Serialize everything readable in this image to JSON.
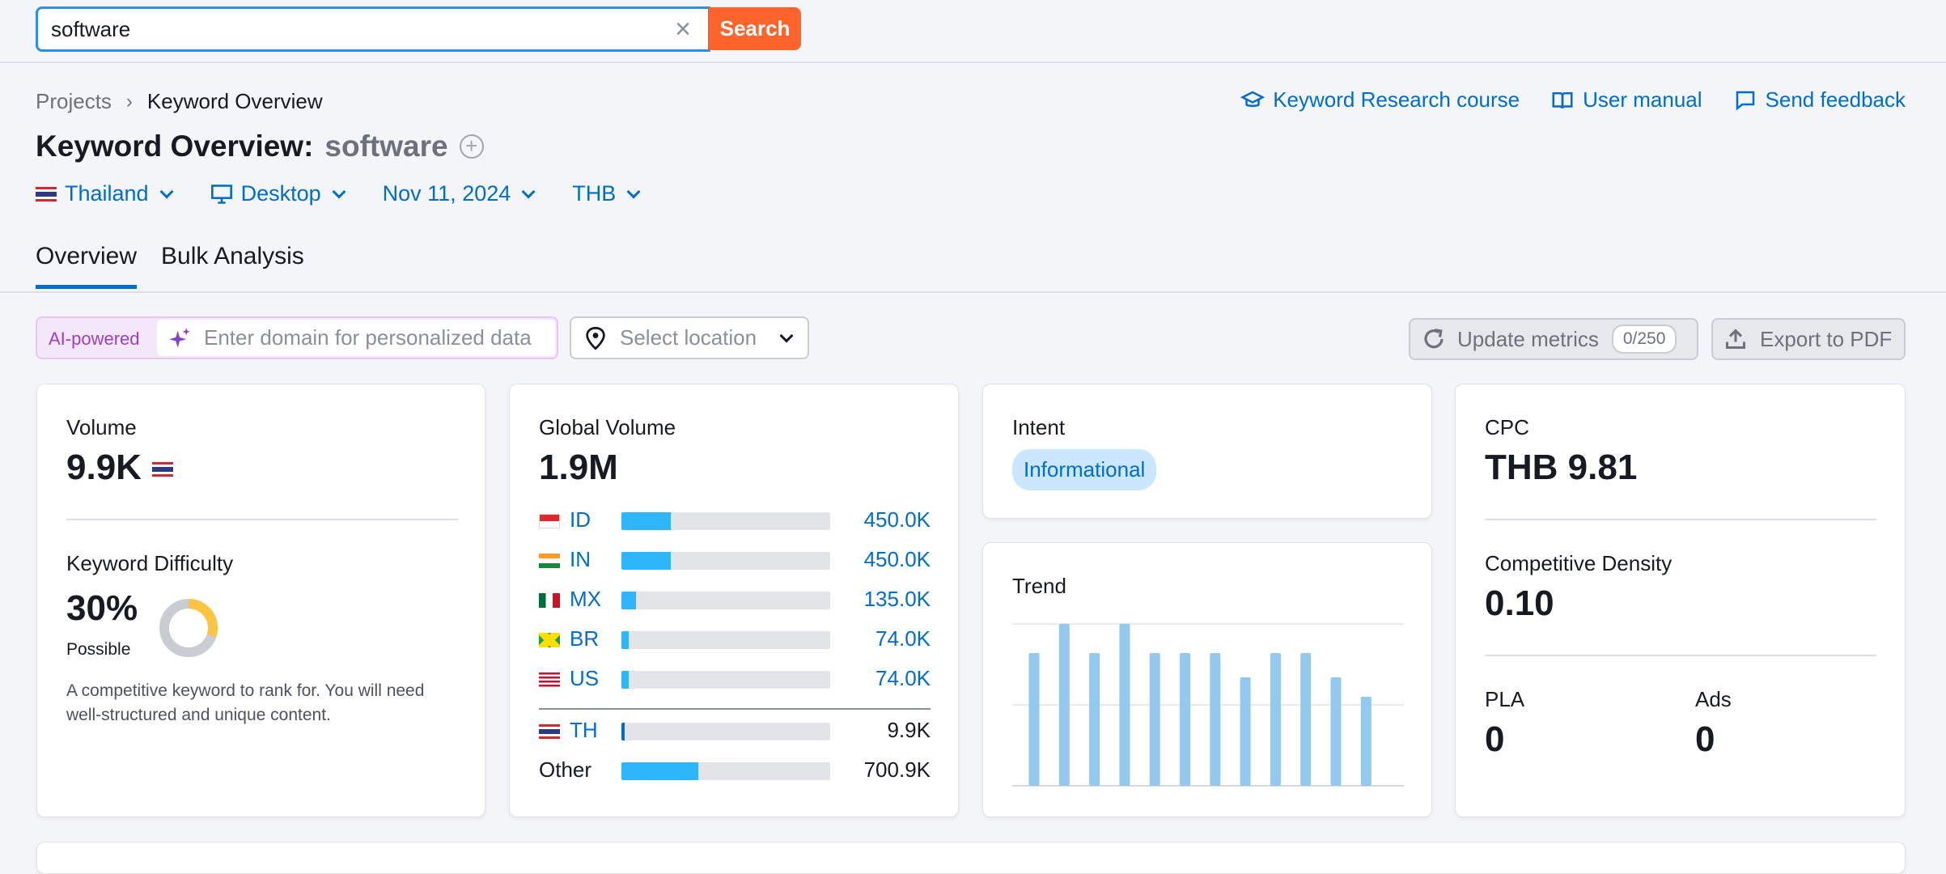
{
  "search": {
    "value": "software",
    "button": "Search"
  },
  "breadcrumb": {
    "root": "Projects",
    "current": "Keyword Overview"
  },
  "links": {
    "course": "Keyword Research course",
    "manual": "User manual",
    "feedback": "Send feedback"
  },
  "title": {
    "prefix": "Keyword Overview:",
    "keyword": "software"
  },
  "filters": {
    "country": "Thailand",
    "device": "Desktop",
    "date": "Nov 11, 2024",
    "currency": "THB"
  },
  "tabs": [
    {
      "label": "Overview"
    },
    {
      "label": "Bulk Analysis"
    }
  ],
  "ai": {
    "label": "AI-powered",
    "placeholder": "Enter domain for personalized data"
  },
  "location": {
    "placeholder": "Select location"
  },
  "toolbar": {
    "update": "Update metrics",
    "update_count": "0/250",
    "export": "Export to PDF"
  },
  "volume": {
    "label": "Volume",
    "value": "9.9K"
  },
  "kd": {
    "label": "Keyword Difficulty",
    "value": "30%",
    "level": "Possible",
    "percent": 30,
    "description": "A competitive keyword to rank for. You will need well-structured and unique content."
  },
  "global": {
    "label": "Global Volume",
    "value": "1.9M",
    "rows": [
      {
        "code": "ID",
        "value": "450.0K",
        "share": 0.236
      },
      {
        "code": "IN",
        "value": "450.0K",
        "share": 0.236
      },
      {
        "code": "MX",
        "value": "135.0K",
        "share": 0.07
      },
      {
        "code": "BR",
        "value": "74.0K",
        "share": 0.035
      },
      {
        "code": "US",
        "value": "74.0K",
        "share": 0.035
      },
      {
        "code": "TH",
        "value": "9.9K",
        "share": 0.012
      },
      {
        "code": "Other",
        "value": "700.9K",
        "share": 0.368
      }
    ]
  },
  "intent": {
    "label": "Intent",
    "badge": "Informational"
  },
  "trend": {
    "label": "Trend",
    "values": [
      0.82,
      1.0,
      0.82,
      1.0,
      0.82,
      0.82,
      0.82,
      0.67,
      0.82,
      0.82,
      0.67,
      0.55
    ]
  },
  "cpc": {
    "label": "CPC",
    "value": "THB 9.81"
  },
  "density": {
    "label": "Competitive Density",
    "value": "0.10"
  },
  "pla": {
    "label": "PLA",
    "value": "0"
  },
  "ads": {
    "label": "Ads",
    "value": "0"
  },
  "colors": {
    "accent": "#006dca",
    "search_btn": "#ff642d",
    "bar": "#2fb5fa",
    "trend_bar": "#93c8ef",
    "kd_yellow": "#fcc541"
  }
}
